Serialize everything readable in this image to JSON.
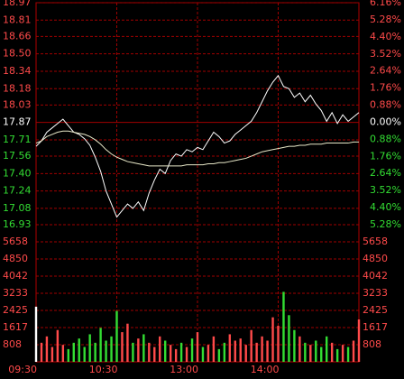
{
  "chart_data": [
    {
      "type": "line",
      "xlim": [
        0,
        240
      ],
      "x": [
        0,
        4,
        8,
        12,
        16,
        20,
        24,
        28,
        32,
        36,
        40,
        44,
        48,
        52,
        56,
        60,
        64,
        68,
        72,
        76,
        80,
        84,
        88,
        92,
        96,
        100,
        104,
        108,
        112,
        116,
        120,
        124,
        128,
        132,
        136,
        140,
        144,
        148,
        152,
        156,
        160,
        164,
        168,
        172,
        176,
        180,
        184,
        188,
        192,
        196,
        200,
        204,
        208,
        212,
        216,
        220,
        224,
        228,
        232,
        236,
        240
      ],
      "series": [
        {
          "color": "#ffffff",
          "values": [
            17.65,
            17.7,
            17.78,
            17.82,
            17.86,
            17.9,
            17.84,
            17.78,
            17.76,
            17.72,
            17.66,
            17.55,
            17.42,
            17.24,
            17.12,
            17.0,
            17.06,
            17.12,
            17.08,
            17.14,
            17.06,
            17.22,
            17.34,
            17.44,
            17.4,
            17.52,
            17.58,
            17.56,
            17.62,
            17.6,
            17.64,
            17.62,
            17.7,
            17.78,
            17.74,
            17.68,
            17.7,
            17.76,
            17.8,
            17.84,
            17.88,
            17.96,
            18.06,
            18.16,
            18.24,
            18.3,
            18.2,
            18.18,
            18.1,
            18.14,
            18.06,
            18.12,
            18.04,
            17.98,
            17.88,
            17.96,
            17.86,
            17.94,
            17.88,
            17.92,
            17.96
          ]
        },
        {
          "color": "#e8e8c8",
          "values": [
            17.68,
            17.7,
            17.74,
            17.76,
            17.78,
            17.79,
            17.79,
            17.78,
            17.77,
            17.76,
            17.74,
            17.71,
            17.67,
            17.62,
            17.58,
            17.55,
            17.53,
            17.51,
            17.5,
            17.49,
            17.48,
            17.47,
            17.47,
            17.47,
            17.47,
            17.47,
            17.47,
            17.47,
            17.48,
            17.48,
            17.48,
            17.48,
            17.49,
            17.49,
            17.5,
            17.5,
            17.51,
            17.52,
            17.53,
            17.54,
            17.56,
            17.58,
            17.6,
            17.61,
            17.62,
            17.63,
            17.64,
            17.65,
            17.65,
            17.66,
            17.66,
            17.67,
            17.67,
            17.67,
            17.68,
            17.68,
            17.68,
            17.68,
            17.68,
            17.69,
            17.69
          ]
        }
      ],
      "ylim": [
        16.93,
        18.97
      ],
      "yticks": [
        18.97,
        18.81,
        18.66,
        {
          "value": 18.5,
          "label": "18.50"
        },
        18.34,
        18.18,
        18.03,
        17.87,
        17.71,
        17.56,
        {
          "value": 17.4,
          "label": "17.40"
        },
        17.24,
        17.08,
        16.93
      ],
      "y2lim": [
        -5.28,
        6.16
      ],
      "y2ticks": [
        {
          "value": 6.16,
          "label": "6.16%"
        },
        {
          "value": 5.28,
          "label": "5.28%"
        },
        {
          "value": 4.4,
          "label": "4.40%"
        },
        {
          "value": 3.52,
          "label": "3.52%"
        },
        {
          "value": 2.64,
          "label": "2.64%"
        },
        {
          "value": 1.76,
          "label": "1.76%"
        },
        {
          "value": 0.88,
          "label": "0.88%"
        },
        {
          "value": 0,
          "label": "0.00%"
        },
        {
          "value": -0.88,
          "label": "0.88%"
        },
        {
          "value": -1.76,
          "label": "1.76%"
        },
        {
          "value": -2.64,
          "label": "2.64%"
        },
        {
          "value": -3.52,
          "label": "3.52%"
        },
        {
          "value": -4.4,
          "label": "4.40%"
        },
        {
          "value": -5.28,
          "label": "5.28%"
        }
      ],
      "grid": true
    },
    {
      "type": "bar",
      "xlim": [
        0,
        240
      ],
      "x": [
        0,
        4,
        8,
        12,
        16,
        20,
        24,
        28,
        32,
        36,
        40,
        44,
        48,
        52,
        56,
        60,
        64,
        68,
        72,
        76,
        80,
        84,
        88,
        92,
        96,
        100,
        104,
        108,
        112,
        116,
        120,
        124,
        128,
        132,
        136,
        140,
        144,
        148,
        152,
        156,
        160,
        164,
        168,
        172,
        176,
        180,
        184,
        188,
        192,
        196,
        200,
        204,
        208,
        212,
        216,
        220,
        224,
        228,
        232,
        236,
        240
      ],
      "values": [
        2600,
        900,
        1200,
        700,
        1500,
        800,
        600,
        900,
        1100,
        700,
        1300,
        900,
        1600,
        1000,
        1200,
        2400,
        1400,
        1800,
        900,
        1100,
        1300,
        900,
        700,
        1200,
        1000,
        800,
        600,
        900,
        700,
        1100,
        1400,
        700,
        800,
        1200,
        600,
        900,
        1300,
        1000,
        1100,
        800,
        1500,
        900,
        1200,
        1000,
        2100,
        1700,
        3300,
        2200,
        1500,
        1200,
        900,
        800,
        1000,
        700,
        1200,
        900,
        600,
        800,
        700,
        1000,
        2000
      ],
      "ylim": [
        0,
        5658
      ],
      "yticks": [
        5658,
        4850,
        4042,
        3233,
        2425,
        1617,
        808
      ],
      "xticks": [
        {
          "value": 0,
          "label": "09:30"
        },
        {
          "value": 60,
          "label": "10:30"
        },
        {
          "value": 120,
          "label": "13:00"
        },
        {
          "value": 180,
          "label": "14:00"
        }
      ],
      "grid": true
    }
  ]
}
